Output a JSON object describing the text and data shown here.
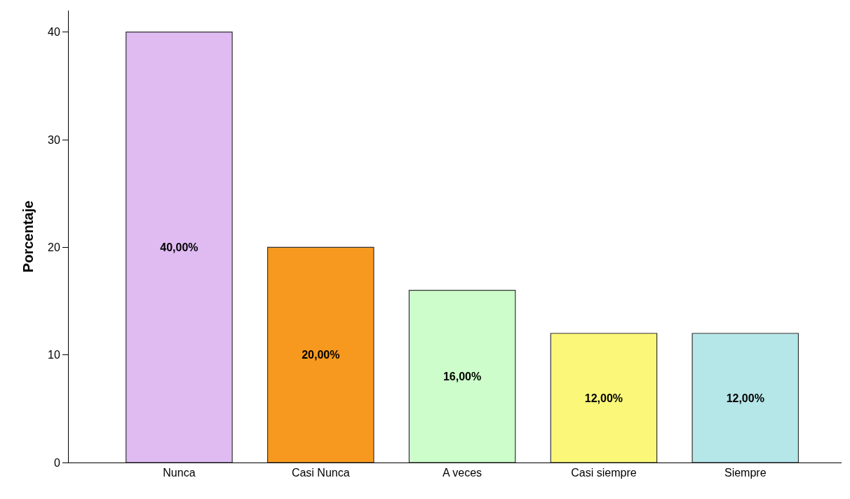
{
  "chart_data": {
    "type": "bar",
    "ylabel": "Porcentaje",
    "categories": [
      "Nunca",
      "Casi Nunca",
      "A veces",
      "Casi siempre",
      "Siempre"
    ],
    "values": [
      40,
      20,
      16,
      12,
      12
    ],
    "value_labels": [
      "40,00%",
      "20,00%",
      "16,00%",
      "12,00%",
      "12,00%"
    ],
    "colors": [
      "#dfbbf2",
      "#f7991e",
      "#ccfdca",
      "#fbf779",
      "#b5e6e8"
    ],
    "ylim": [
      0,
      42
    ],
    "yticks": [
      0,
      10,
      20,
      30,
      40
    ]
  }
}
